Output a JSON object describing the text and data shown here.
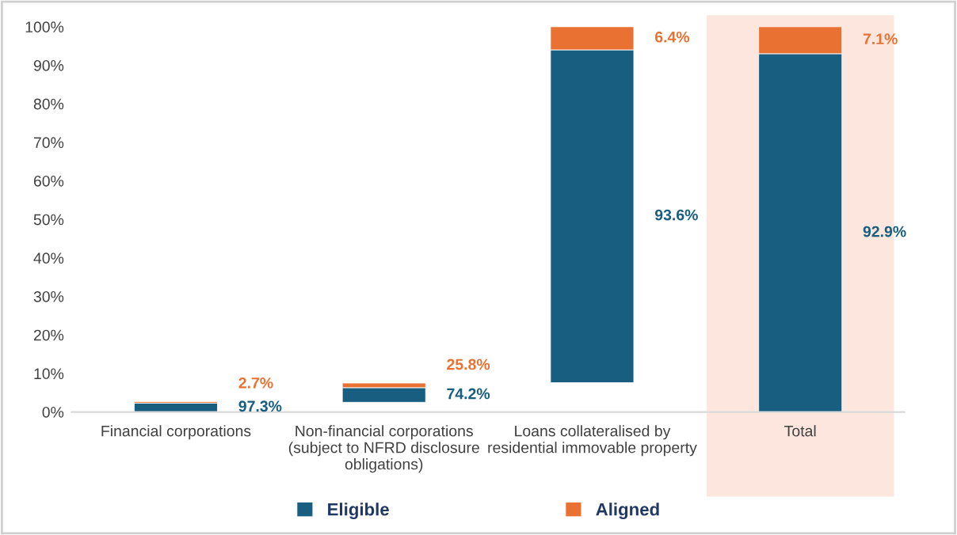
{
  "chart_data": {
    "type": "bar",
    "categories": [
      "Financial corporations",
      "Non-financial corporations\n(subject to NFRD disclosure\nobligations)",
      "Loans collateralised by\nresidential immovable property",
      "Total"
    ],
    "series": [
      {
        "name": "Eligible",
        "color": "#185e80",
        "values": [
          2.3,
          3.8,
          86.4,
          93.0
        ],
        "base": [
          0,
          2.5,
          7.6,
          0
        ]
      },
      {
        "name": "Aligned",
        "color": "#e97132",
        "values": [
          0.4,
          1.2,
          6.0,
          7.0
        ],
        "base": [
          2.3,
          6.3,
          94.0,
          93.0
        ]
      }
    ],
    "annotations": [
      "97.3%",
      "2.7%",
      "74.2%",
      "25.8%",
      "93.6%",
      "6.4%",
      "92.9%",
      "7.1%"
    ],
    "ylim": [
      0,
      100
    ],
    "yticks": [
      {
        "value": 0,
        "label": "0%"
      },
      {
        "value": 10,
        "label": "10%"
      },
      {
        "value": 20,
        "label": "20%"
      },
      {
        "value": 30,
        "label": "30%"
      },
      {
        "value": 40,
        "label": "40%"
      },
      {
        "value": 50,
        "label": "50%"
      },
      {
        "value": 60,
        "label": "60%"
      },
      {
        "value": 70,
        "label": "70%"
      },
      {
        "value": 80,
        "label": "80%"
      },
      {
        "value": 90,
        "label": "90%"
      },
      {
        "value": 100,
        "label": "100%"
      }
    ],
    "bands": [
      {
        "axis": "x",
        "from": "Total",
        "to": "Total",
        "color": "#fce6dd"
      }
    ],
    "grid": false,
    "legend": "bottom"
  }
}
